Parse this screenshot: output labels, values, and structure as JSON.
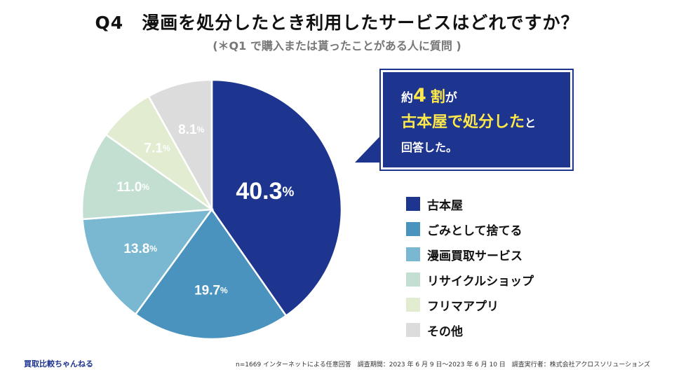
{
  "header": {
    "title": "Q4　漫画を処分したとき利用したサービスはどれですか？",
    "subtitle": "(＊Q1 で購入または貰ったことがある人に質問 )"
  },
  "chart_data": {
    "type": "pie",
    "title": "Q4　漫画を処分したとき利用したサービスはどれですか？",
    "unit": "%",
    "slices": [
      {
        "label": "古本屋",
        "value": 40.3,
        "display": "40.3",
        "color": "#1e3590"
      },
      {
        "label": "ごみとして捨てる",
        "value": 19.7,
        "display": "19.7",
        "color": "#4a93bf"
      },
      {
        "label": "漫画買取サービス",
        "value": 13.8,
        "display": "13.8",
        "color": "#79b8d0"
      },
      {
        "label": "リサイクルショップ",
        "value": 11.0,
        "display": "11.0",
        "color": "#c2dfd2"
      },
      {
        "label": "フリマアプリ",
        "value": 7.1,
        "display": "7.1",
        "color": "#e1ecd0"
      },
      {
        "label": "その他",
        "value": 8.1,
        "display": "8.1",
        "color": "#dcdcdc"
      }
    ]
  },
  "callout": {
    "line1_pre": "約",
    "line1_num": "4",
    "line1_post": "割",
    "line1_tail": "が",
    "line2_highlight": "古本屋で処分した",
    "line2_tail": "と",
    "line3": "回答した。"
  },
  "colors": {
    "accent": "#1e3590",
    "highlight": "#ffe94a"
  },
  "footer": {
    "brand": "買取比較ちゃんねる",
    "note": "n=1669 インターネットによる任意回答　調査期間：2023 年 6 月 9 日〜2023 年 6 月 10 日　調査実行者：株式会社アクロスソリューションズ"
  }
}
